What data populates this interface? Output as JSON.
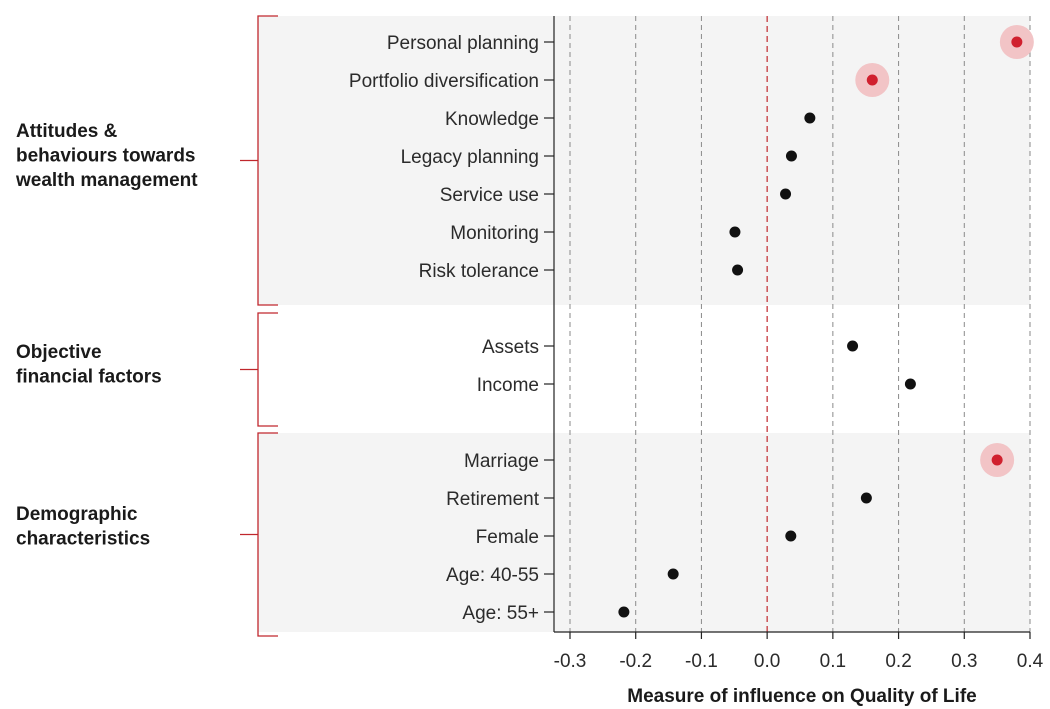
{
  "chart_data": {
    "type": "scatter",
    "xlabel": "Measure of influence on Quality of Life",
    "xlim": [
      -0.3,
      0.4
    ],
    "xticks": [
      -0.3,
      -0.2,
      -0.1,
      0.0,
      0.1,
      0.2,
      0.3,
      0.4
    ],
    "xtick_labels": [
      "-0.3",
      "-0.2",
      "-0.1",
      "0.0",
      "0.1",
      "0.2",
      "0.3",
      "0.4"
    ],
    "reference_line": 0,
    "grid": "vertical dashed",
    "groups": [
      {
        "label": "Attitudes & behaviours towards wealth management",
        "label_lines": [
          "Attitudes &",
          "behaviours towards",
          "wealth management"
        ],
        "shaded": true,
        "items": [
          {
            "label": "Personal planning",
            "value": 0.38,
            "highlight": true
          },
          {
            "label": "Portfolio diversification",
            "value": 0.16,
            "highlight": true
          },
          {
            "label": "Knowledge",
            "value": 0.065,
            "highlight": false
          },
          {
            "label": "Legacy planning",
            "value": 0.037,
            "highlight": false
          },
          {
            "label": "Service use",
            "value": 0.028,
            "highlight": false
          },
          {
            "label": "Monitoring",
            "value": -0.049,
            "highlight": false
          },
          {
            "label": "Risk tolerance",
            "value": -0.045,
            "highlight": false
          }
        ]
      },
      {
        "label": "Objective financial factors",
        "label_lines": [
          "Objective",
          "financial factors"
        ],
        "shaded": false,
        "items": [
          {
            "label": "Assets",
            "value": 0.13,
            "highlight": false
          },
          {
            "label": "Income",
            "value": 0.218,
            "highlight": false
          }
        ]
      },
      {
        "label": "Demographic characteristics",
        "label_lines": [
          "Demographic",
          "characteristics"
        ],
        "shaded": true,
        "items": [
          {
            "label": "Marriage",
            "value": 0.35,
            "highlight": true
          },
          {
            "label": "Retirement",
            "value": 0.151,
            "highlight": false
          },
          {
            "label": "Female",
            "value": 0.036,
            "highlight": false
          },
          {
            "label": "Age: 40-55",
            "value": -0.143,
            "highlight": false
          },
          {
            "label": "Age: 55+",
            "value": -0.218,
            "highlight": false
          }
        ]
      }
    ],
    "colors": {
      "highlight": "#d0202e",
      "highlight_halo": "#f2c4c6",
      "point": "#111111",
      "bracket": "#c0272d",
      "band": "#f4f4f4",
      "grid": "#8a8a8a",
      "zero_line": "#c0272d"
    }
  }
}
